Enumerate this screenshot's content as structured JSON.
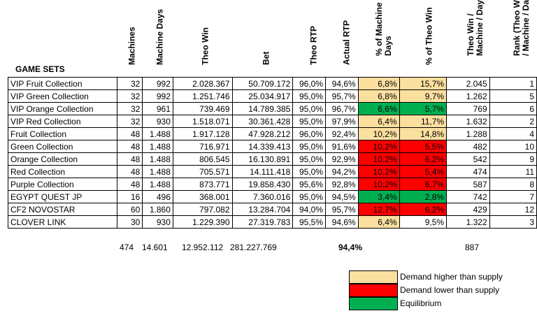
{
  "headers": {
    "game_sets": "GAME SETS",
    "machines": "Machines",
    "machine_days": "Machine Days",
    "theo_win": "Theo Win",
    "bet": "Bet",
    "theo_rtp": "Theo RTP",
    "actual_rtp": "Actual RTP",
    "pct_machine_days": "% of Machine Days",
    "pct_theo_win": "% of Theo Win",
    "theo_win_machine_day": "Theo Win / Machine / Day",
    "rank": "Rank (Theo Win / Machine / Day"
  },
  "rows": [
    {
      "name": "VIP Fruit Collection",
      "machines": "32",
      "days": "992",
      "theo": "2.028.367",
      "bet": "50.709.172",
      "trtp": "96,0%",
      "artp": "94,6%",
      "pmd": "6,8%",
      "ptw": "15,7%",
      "twm": "2.045",
      "rank": "1",
      "cmd": "high",
      "ctw": "high"
    },
    {
      "name": "VIP Green Collection",
      "machines": "32",
      "days": "992",
      "theo": "1.251.746",
      "bet": "25.034.917",
      "trtp": "95,0%",
      "artp": "95,7%",
      "pmd": "6,8%",
      "ptw": "9,7%",
      "twm": "1.262",
      "rank": "5",
      "cmd": "high",
      "ctw": "high"
    },
    {
      "name": "VIP Orange Collection",
      "machines": "32",
      "days": "961",
      "theo": "739.469",
      "bet": "14.789.385",
      "trtp": "95,0%",
      "artp": "96,7%",
      "pmd": "6,6%",
      "ptw": "5,7%",
      "twm": "769",
      "rank": "6",
      "cmd": "eq",
      "ctw": "eq"
    },
    {
      "name": "VIP Red Collection",
      "machines": "32",
      "days": "930",
      "theo": "1.518.071",
      "bet": "30.361.428",
      "trtp": "95,0%",
      "artp": "97,9%",
      "pmd": "6,4%",
      "ptw": "11,7%",
      "twm": "1.632",
      "rank": "2",
      "cmd": "high",
      "ctw": "high"
    },
    {
      "name": "Fruit Collection",
      "machines": "48",
      "days": "1.488",
      "theo": "1.917.128",
      "bet": "47.928.212",
      "trtp": "96,0%",
      "artp": "92,4%",
      "pmd": "10,2%",
      "ptw": "14,8%",
      "twm": "1.288",
      "rank": "4",
      "cmd": "high",
      "ctw": "high"
    },
    {
      "name": "Green Collection",
      "machines": "48",
      "days": "1.488",
      "theo": "716.971",
      "bet": "14.339.413",
      "trtp": "95,0%",
      "artp": "91,6%",
      "pmd": "10,2%",
      "ptw": "5,5%",
      "twm": "482",
      "rank": "10",
      "cmd": "low",
      "ctw": "low"
    },
    {
      "name": "Orange Collection",
      "machines": "48",
      "days": "1.488",
      "theo": "806.545",
      "bet": "16.130.891",
      "trtp": "95,0%",
      "artp": "92,9%",
      "pmd": "10,2%",
      "ptw": "6,2%",
      "twm": "542",
      "rank": "9",
      "cmd": "low",
      "ctw": "low"
    },
    {
      "name": "Red Collection",
      "machines": "48",
      "days": "1.488",
      "theo": "705.571",
      "bet": "14.111.418",
      "trtp": "95,0%",
      "artp": "94,2%",
      "pmd": "10,2%",
      "ptw": "5,4%",
      "twm": "474",
      "rank": "11",
      "cmd": "low",
      "ctw": "low"
    },
    {
      "name": "Purple Collection",
      "machines": "48",
      "days": "1.488",
      "theo": "873.771",
      "bet": "19.858.430",
      "trtp": "95,6%",
      "artp": "92,8%",
      "pmd": "10,2%",
      "ptw": "6,7%",
      "twm": "587",
      "rank": "8",
      "cmd": "low",
      "ctw": "low"
    },
    {
      "name": "EGYPT QUEST JP",
      "machines": "16",
      "days": "496",
      "theo": "368.001",
      "bet": "7.360.016",
      "trtp": "95,0%",
      "artp": "94,5%",
      "pmd": "3,4%",
      "ptw": "2,8%",
      "twm": "742",
      "rank": "7",
      "cmd": "eq",
      "ctw": "eq"
    },
    {
      "name": "CF2 NOVOSTAR",
      "machines": "60",
      "days": "1.860",
      "theo": "797.082",
      "bet": "13.284.704",
      "trtp": "94,0%",
      "artp": "95,7%",
      "pmd": "12,7%",
      "ptw": "6,2%",
      "twm": "429",
      "rank": "12",
      "cmd": "low",
      "ctw": "low"
    },
    {
      "name": "CLOVER LINK",
      "machines": "30",
      "days": "930",
      "theo": "1.229.390",
      "bet": "27.319.783",
      "trtp": "95,5%",
      "artp": "94,6%",
      "pmd": "6,4%",
      "ptw": "9,5%",
      "twm": "1.322",
      "rank": "3",
      "cmd": "high",
      "ctw": "none"
    }
  ],
  "totals": {
    "machines": "474",
    "days": "14.601",
    "theo": "12.952.112",
    "bet": "281.227.769",
    "artp": "94,4%",
    "twm": "887"
  },
  "legend": [
    {
      "label": "Demand higher than supply",
      "color": "#fbdf9f"
    },
    {
      "label": "Demand lower than supply",
      "color": "#ff0000"
    },
    {
      "label": "Equilibrium",
      "color": "#00b050"
    }
  ],
  "colors": {
    "high": "#fbdf9f",
    "low": "#ff0000",
    "eq": "#00b050"
  }
}
